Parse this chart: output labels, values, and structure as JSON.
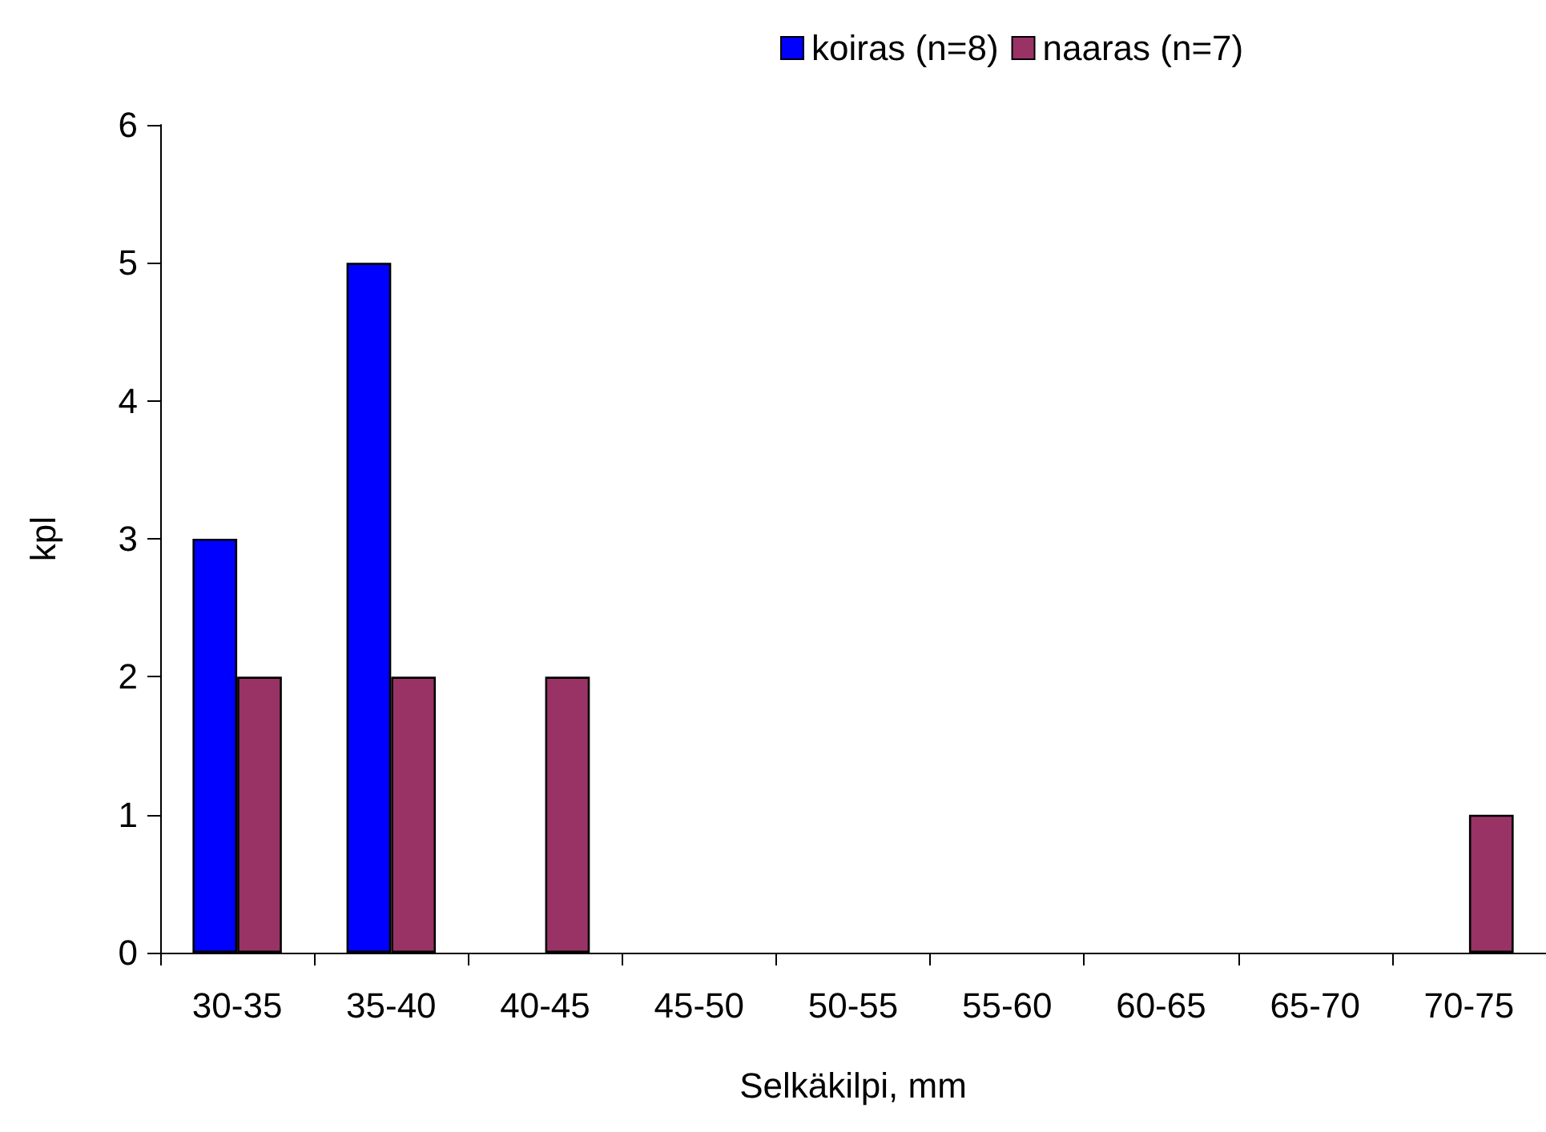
{
  "chart_data": {
    "type": "bar",
    "xlabel": "Selkäkilpi, mm",
    "ylabel": "kpl",
    "categories": [
      "30-35",
      "35-40",
      "40-45",
      "45-50",
      "50-55",
      "55-60",
      "60-65",
      "65-70",
      "70-75"
    ],
    "series": [
      {
        "name": "koiras (n=8)",
        "color": "#0000ff",
        "values": [
          3,
          5,
          0,
          0,
          0,
          0,
          0,
          0,
          0
        ]
      },
      {
        "name": "naaras (n=7)",
        "color": "#993366",
        "values": [
          2,
          2,
          2,
          0,
          0,
          0,
          0,
          0,
          1
        ]
      }
    ],
    "ylim": [
      0,
      6
    ],
    "yticks": [
      0,
      1,
      2,
      3,
      4,
      5,
      6
    ],
    "grid": false,
    "legend": "top"
  }
}
